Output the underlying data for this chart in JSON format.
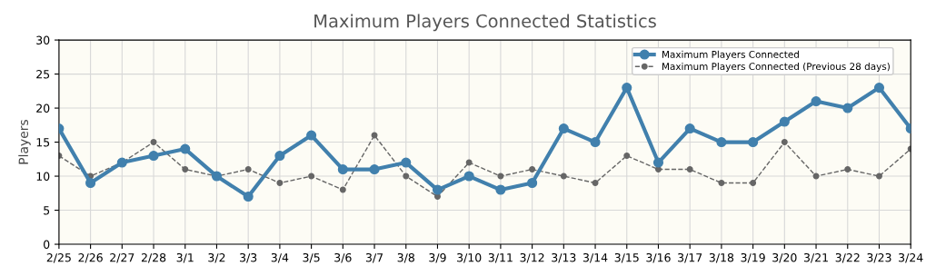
{
  "chart_data": {
    "type": "line",
    "title": "Maximum Players Connected Statistics",
    "ylabel": "Players",
    "categories": [
      "2/25",
      "2/26",
      "2/27",
      "2/28",
      "3/1",
      "3/2",
      "3/3",
      "3/4",
      "3/5",
      "3/6",
      "3/7",
      "3/8",
      "3/9",
      "3/10",
      "3/11",
      "3/12",
      "3/13",
      "3/14",
      "3/15",
      "3/16",
      "3/17",
      "3/18",
      "3/19",
      "3/20",
      "3/21",
      "3/22",
      "3/23",
      "3/24"
    ],
    "series": [
      {
        "name": "Maximum Players Connected",
        "color": "#4180ad",
        "line_style": "solid",
        "values": [
          17,
          9,
          12,
          13,
          14,
          10,
          7,
          13,
          16,
          11,
          11,
          12,
          8,
          10,
          8,
          9,
          17,
          15,
          23,
          12,
          17,
          15,
          15,
          18,
          21,
          20,
          23,
          17
        ]
      },
      {
        "name": "Maximum Players Connected (Previous 28 days)",
        "color": "#666666",
        "line_style": "dashed",
        "values": [
          13,
          10,
          12,
          15,
          11,
          10,
          11,
          9,
          10,
          8,
          16,
          10,
          7,
          12,
          10,
          11,
          10,
          9,
          13,
          11,
          11,
          9,
          9,
          15,
          10,
          11,
          10,
          14
        ]
      }
    ],
    "ylim": [
      0,
      30
    ],
    "yticks": [
      0,
      5,
      10,
      15,
      20,
      25,
      30
    ],
    "grid": true,
    "legend": "top right",
    "marker": "circle"
  }
}
